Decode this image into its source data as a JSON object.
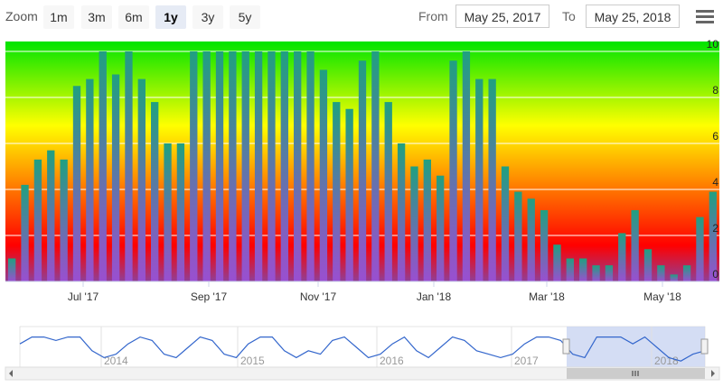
{
  "toolbar": {
    "zoom_label": "Zoom",
    "buttons": [
      "1m",
      "3m",
      "6m",
      "1y",
      "3y",
      "5y"
    ],
    "active_button": "1y",
    "from_label": "From",
    "from_value": "May 25, 2017",
    "to_label": "To",
    "to_value": "May 25, 2018",
    "menu_icon": "hamburger-menu-icon"
  },
  "chart_data": {
    "type": "bar",
    "ylim": [
      0,
      10
    ],
    "y_ticks": [
      "0",
      "2",
      "4",
      "6",
      "8",
      "10"
    ],
    "x_tick_labels": [
      "Jul '17",
      "Sep '17",
      "Nov '17",
      "Jan '18",
      "Mar '18",
      "May '18"
    ],
    "values": [
      1,
      4.2,
      5.3,
      5.7,
      5.3,
      8.5,
      8.8,
      10,
      9,
      10,
      8.8,
      7.8,
      6,
      6,
      10,
      10,
      10,
      10,
      10,
      10,
      10,
      10,
      10,
      10,
      9.2,
      7.8,
      7.5,
      9.6,
      10,
      7.8,
      6,
      5,
      5.3,
      4.6,
      9.6,
      10,
      8.8,
      8.8,
      5,
      3.9,
      3.6,
      3.1,
      1.6,
      1,
      1,
      0.7,
      0.7,
      2.1,
      3.1,
      1.4,
      0.7,
      0.3,
      0.7,
      2.8,
      3.9
    ],
    "gradient_colors": [
      "#00e400",
      "#ffff00",
      "#ff7e00",
      "#ff0000",
      "#8f3f97"
    ],
    "bar_gradient_colors": [
      "#20a080",
      "#9a4fd0"
    ],
    "navigator_labels": [
      "2014",
      "2015",
      "2016",
      "2017",
      "2018"
    ],
    "navigator_series": [
      6,
      8,
      8,
      7,
      8,
      8,
      4,
      2,
      3,
      6,
      8,
      7,
      3,
      2,
      5,
      8,
      7,
      3,
      2,
      6,
      8,
      8,
      4,
      2,
      4,
      3,
      7,
      8,
      5,
      2,
      3,
      6,
      8,
      4,
      2,
      5,
      8,
      7,
      4,
      3,
      2,
      3,
      6,
      8,
      8,
      7,
      3,
      2,
      8,
      8,
      8,
      6,
      8,
      5,
      2,
      1,
      3,
      4
    ]
  }
}
